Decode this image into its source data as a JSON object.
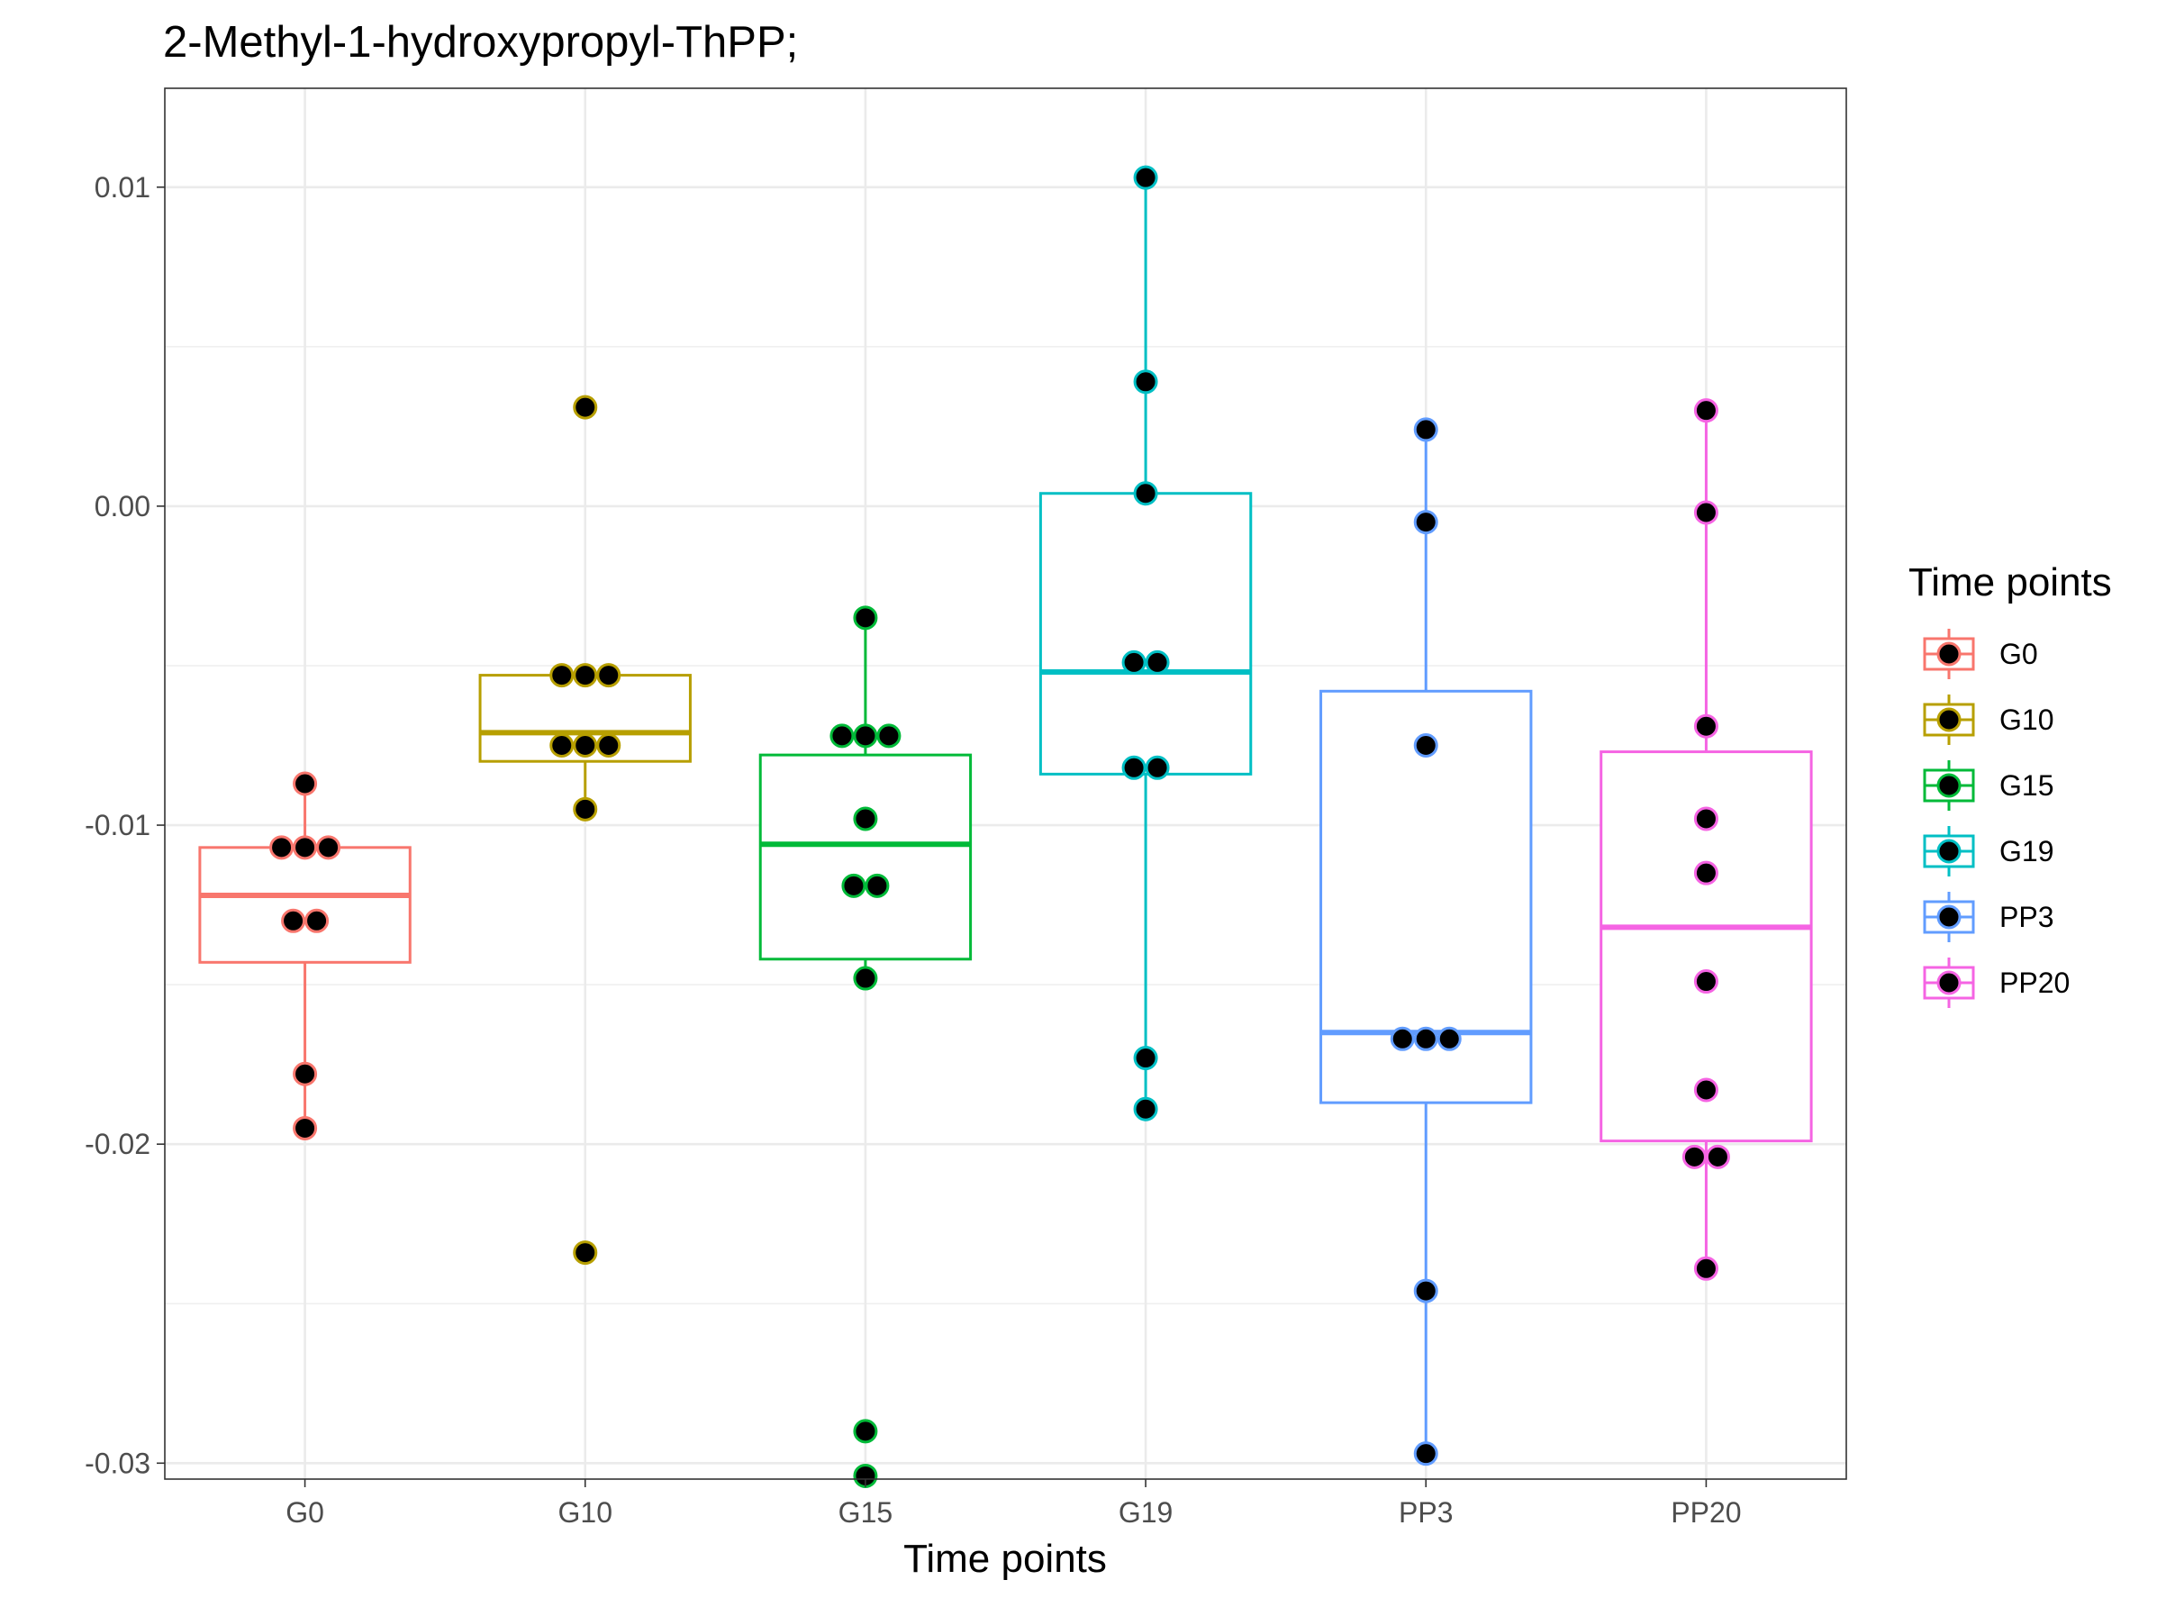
{
  "chart_data": {
    "type": "box",
    "title": "2-Methyl-1-hydroxypropyl-ThPP;",
    "xlabel": "Time points",
    "ylabel": "",
    "ylim": [
      -0.0305,
      0.0131
    ],
    "y_ticks": [
      0.01,
      0.0,
      -0.01,
      -0.02,
      -0.03
    ],
    "y_tick_labels": [
      "0.01",
      "0.00",
      "-0.01",
      "-0.02",
      "-0.03"
    ],
    "grid": true,
    "legend": {
      "title": "Time points",
      "position": "right"
    },
    "categories": [
      "G0",
      "G10",
      "G15",
      "G19",
      "PP3",
      "PP20"
    ],
    "colors": [
      "#F8766D",
      "#B79F00",
      "#00BA38",
      "#00BFC4",
      "#619CFF",
      "#F564E3"
    ],
    "series": [
      {
        "name": "G0",
        "box": {
          "lower_whisker": -0.0195,
          "q1": -0.0143,
          "median": -0.0122,
          "q3": -0.0107,
          "upper_whisker": -0.0087
        },
        "points": [
          -0.0087,
          -0.0107,
          -0.0107,
          -0.0107,
          -0.013,
          -0.013,
          -0.0178,
          -0.0195
        ]
      },
      {
        "name": "G10",
        "box": {
          "lower_whisker": -0.0095,
          "q1": -0.008,
          "median": -0.0071,
          "q3": -0.0053,
          "upper_whisker": -0.0053
        },
        "points": [
          0.0031,
          -0.0053,
          -0.0053,
          -0.0053,
          -0.0075,
          -0.0075,
          -0.0075,
          -0.0095,
          -0.0234
        ]
      },
      {
        "name": "G15",
        "box": {
          "lower_whisker": -0.0148,
          "q1": -0.0142,
          "median": -0.0106,
          "q3": -0.0078,
          "upper_whisker": -0.0035
        },
        "points": [
          -0.0035,
          -0.0072,
          -0.0072,
          -0.0072,
          -0.0098,
          -0.0119,
          -0.0119,
          -0.0148,
          -0.029,
          -0.0304
        ]
      },
      {
        "name": "G19",
        "box": {
          "lower_whisker": -0.0189,
          "q1": -0.0084,
          "median": -0.0052,
          "q3": 0.0004,
          "upper_whisker": 0.0103
        },
        "points": [
          0.0103,
          0.0039,
          0.0004,
          -0.0049,
          -0.0049,
          -0.0082,
          -0.0082,
          -0.0173,
          -0.0189
        ]
      },
      {
        "name": "PP3",
        "box": {
          "lower_whisker": -0.0297,
          "q1": -0.0187,
          "median": -0.0165,
          "q3": -0.0058,
          "upper_whisker": 0.0024
        },
        "points": [
          0.0024,
          -0.0005,
          -0.0075,
          -0.0167,
          -0.0167,
          -0.0167,
          -0.0246,
          -0.0297
        ]
      },
      {
        "name": "PP20",
        "box": {
          "lower_whisker": -0.0239,
          "q1": -0.0199,
          "median": -0.0132,
          "q3": -0.0077,
          "upper_whisker": 0.003
        },
        "points": [
          0.003,
          -0.0002,
          -0.0069,
          -0.0098,
          -0.0115,
          -0.0149,
          -0.0183,
          -0.0204,
          -0.0204,
          -0.0239
        ]
      }
    ]
  }
}
